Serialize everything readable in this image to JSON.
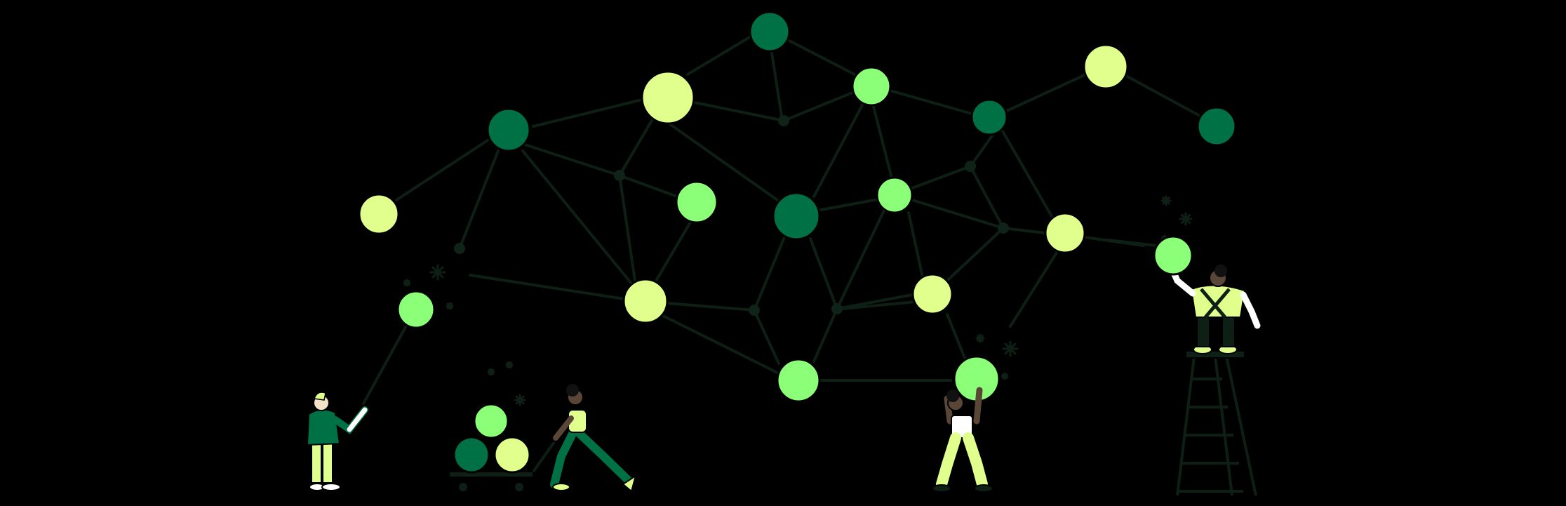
{
  "colors": {
    "background": "#000000",
    "edge": "#0e2016",
    "junction": "#0f2318",
    "dark_green": "#007045",
    "light_yellow": "#e0ff8c",
    "bright_green": "#8cff78",
    "outline": "#000000",
    "white": "#ffffff",
    "skin_dark": "#5a4636",
    "skin_light": "#f4e2c8",
    "hair": "#111111"
  },
  "illustration": {
    "subject": "network-graph-with-people-placing-nodes",
    "figures": [
      {
        "role": "pointing-person",
        "icon": "person-pointing-icon"
      },
      {
        "role": "cart-pusher",
        "icon": "person-pushing-cart-icon"
      },
      {
        "role": "node-lifter",
        "icon": "person-lifting-node-icon"
      },
      {
        "role": "ladder-climber",
        "icon": "person-on-ladder-icon"
      }
    ],
    "decorations": [
      "sparkle-icon"
    ]
  }
}
